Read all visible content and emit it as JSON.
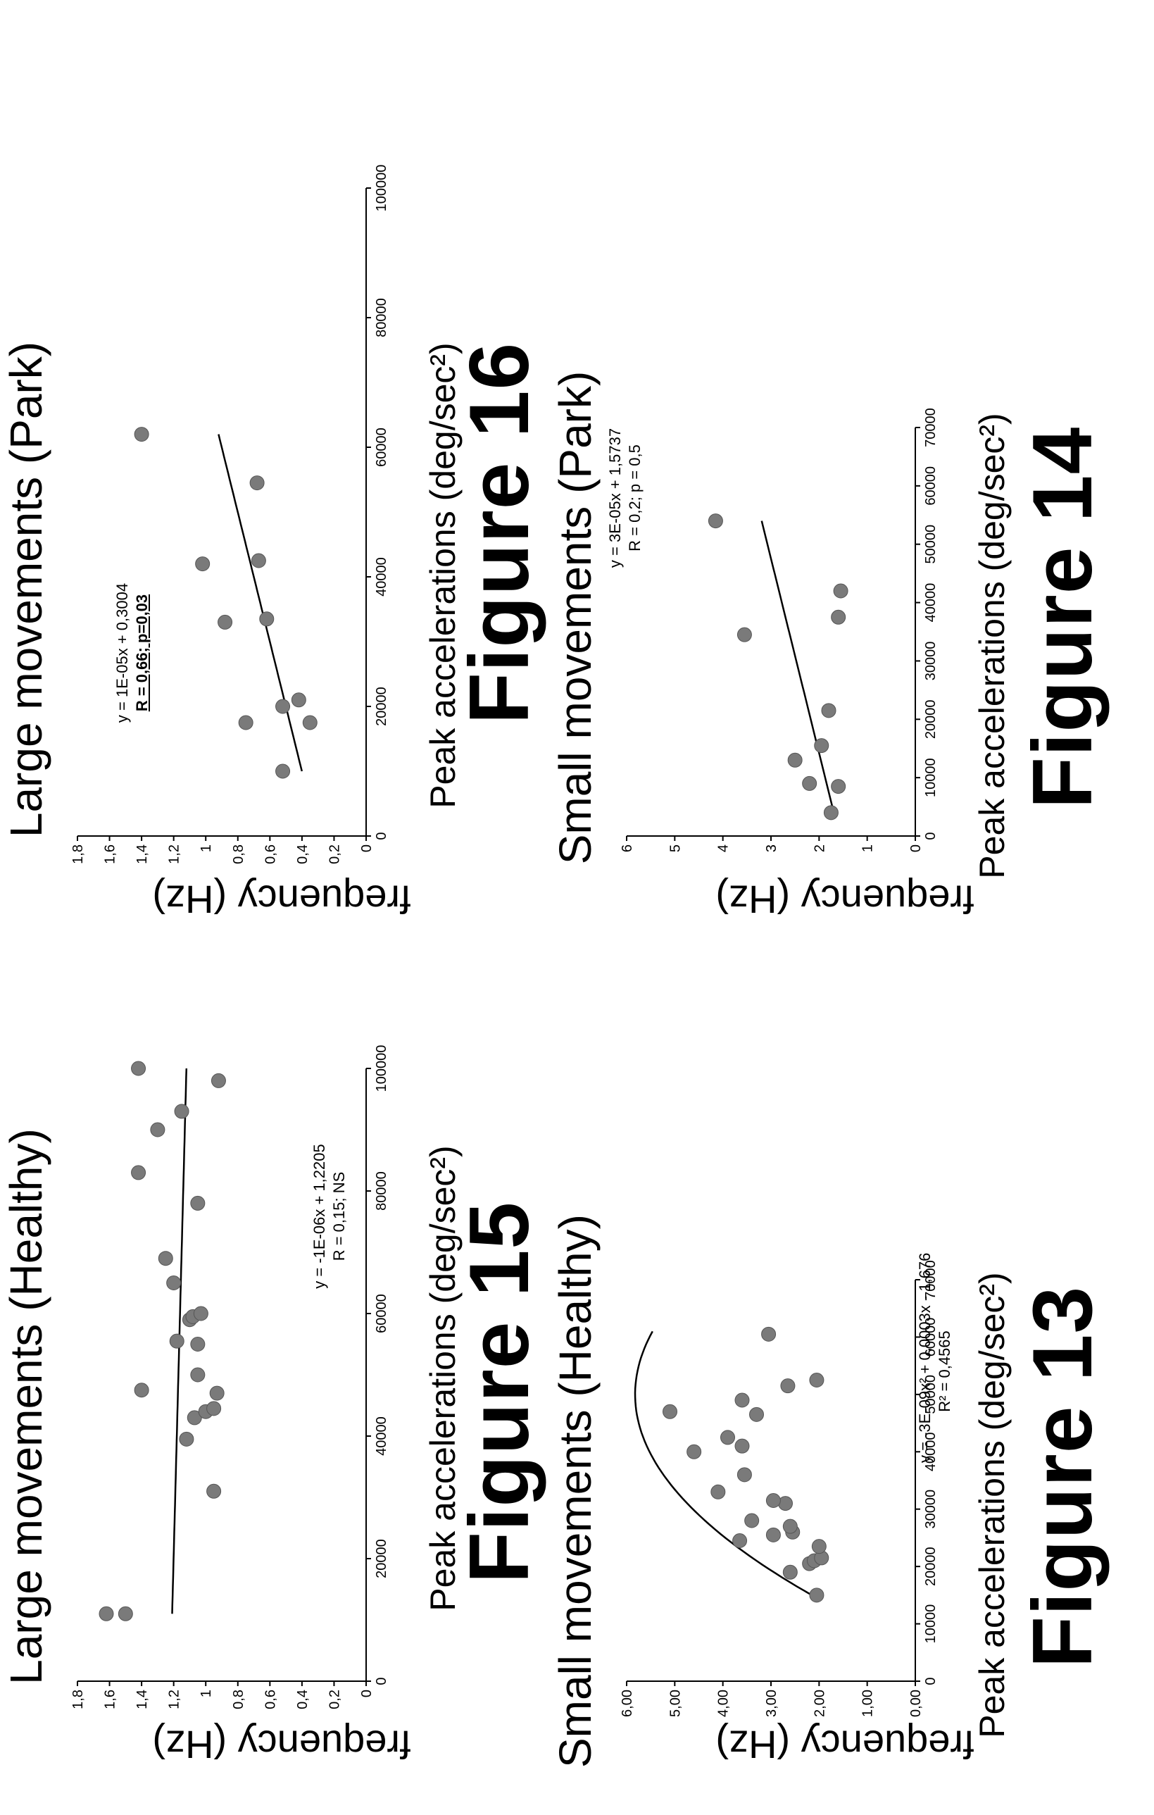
{
  "chart_data": [
    {
      "id": "fig13",
      "type": "scatter",
      "title": "Small movements (Healthy)",
      "xlabel": "Peak accelerations (deg/sec²)",
      "ylabel": "frequency (Hz)",
      "figure_label": "Figure 13",
      "xlim": [
        0,
        70000
      ],
      "ylim": [
        0,
        6
      ],
      "xticks": [
        0,
        10000,
        20000,
        30000,
        40000,
        50000,
        60000,
        70000
      ],
      "xtick_labels": [
        "0",
        "10000",
        "20000",
        "30000",
        "40000",
        "50000",
        "60000",
        "70000"
      ],
      "yticks": [
        0,
        1,
        2,
        3,
        4,
        5,
        6
      ],
      "ytick_labels": [
        "0,00",
        "1,00",
        "2,00",
        "3,00",
        "4,00",
        "5,00",
        "6,00"
      ],
      "equation": "y = -3E-09x² + 0,0003x - 1,676",
      "stat": "R² = 0,4565",
      "stat_emphasis": false,
      "fit": {
        "kind": "poly2",
        "a": -3e-09,
        "b": 0.0003,
        "c": -1.676,
        "x_range": [
          15000,
          61000
        ]
      },
      "points": [
        {
          "x": 15000,
          "y": 2.05
        },
        {
          "x": 19000,
          "y": 2.6
        },
        {
          "x": 20500,
          "y": 2.2
        },
        {
          "x": 21000,
          "y": 2.1
        },
        {
          "x": 21500,
          "y": 1.95
        },
        {
          "x": 23500,
          "y": 2.0
        },
        {
          "x": 24500,
          "y": 3.65
        },
        {
          "x": 25500,
          "y": 2.95
        },
        {
          "x": 26000,
          "y": 2.55
        },
        {
          "x": 27000,
          "y": 2.6
        },
        {
          "x": 28000,
          "y": 3.4
        },
        {
          "x": 31000,
          "y": 2.7
        },
        {
          "x": 31500,
          "y": 2.95
        },
        {
          "x": 33000,
          "y": 4.1
        },
        {
          "x": 36000,
          "y": 3.55
        },
        {
          "x": 40000,
          "y": 4.6
        },
        {
          "x": 41000,
          "y": 3.6
        },
        {
          "x": 42500,
          "y": 3.9
        },
        {
          "x": 46500,
          "y": 3.3
        },
        {
          "x": 47000,
          "y": 5.1
        },
        {
          "x": 49000,
          "y": 3.6
        },
        {
          "x": 51500,
          "y": 2.65
        },
        {
          "x": 52500,
          "y": 2.05
        },
        {
          "x": 60500,
          "y": 3.05
        }
      ]
    },
    {
      "id": "fig14",
      "type": "scatter",
      "title": "Small movements (Park)",
      "xlabel": "Peak accelerations (deg/sec²)",
      "ylabel": "frequency (Hz)",
      "figure_label": "Figure 14",
      "xlim": [
        0,
        70000
      ],
      "ylim": [
        0,
        6
      ],
      "xticks": [
        0,
        10000,
        20000,
        30000,
        40000,
        50000,
        60000,
        70000
      ],
      "xtick_labels": [
        "0",
        "10000",
        "20000",
        "30000",
        "40000",
        "50000",
        "60000",
        "70000"
      ],
      "yticks": [
        0,
        1,
        2,
        3,
        4,
        5,
        6
      ],
      "ytick_labels": [
        "0",
        "1",
        "2",
        "3",
        "4",
        "5",
        "6"
      ],
      "equation": "y = 3E-05x + 1,5737",
      "stat": "R = 0,2; p = 0,5",
      "stat_emphasis": false,
      "fit": {
        "kind": "linear",
        "m": 3e-05,
        "b": 1.5737,
        "x_range": [
          4000,
          54000
        ]
      },
      "points": [
        {
          "x": 4000,
          "y": 1.75
        },
        {
          "x": 8500,
          "y": 1.6
        },
        {
          "x": 9000,
          "y": 2.2
        },
        {
          "x": 13000,
          "y": 2.5
        },
        {
          "x": 15500,
          "y": 1.95
        },
        {
          "x": 21500,
          "y": 1.8
        },
        {
          "x": 34500,
          "y": 3.55
        },
        {
          "x": 37500,
          "y": 1.6
        },
        {
          "x": 42000,
          "y": 1.55
        },
        {
          "x": 54000,
          "y": 4.15
        }
      ]
    },
    {
      "id": "fig15",
      "type": "scatter",
      "title": "Large movements (Healthy)",
      "xlabel": "Peak accelerations (deg/sec²)",
      "ylabel": "frequency (Hz)",
      "figure_label": "Figure 15",
      "xlim": [
        0,
        100000
      ],
      "ylim": [
        0,
        1.8
      ],
      "xticks": [
        0,
        20000,
        40000,
        60000,
        80000,
        100000
      ],
      "xtick_labels": [
        "0",
        "20000",
        "40000",
        "60000",
        "80000",
        "100000"
      ],
      "yticks": [
        0,
        0.2,
        0.4,
        0.6,
        0.8,
        1.0,
        1.2,
        1.4,
        1.6,
        1.8
      ],
      "ytick_labels": [
        "0",
        "0,2",
        "0,4",
        "0,6",
        "0,8",
        "1",
        "1,2",
        "1,4",
        "1,6",
        "1,8"
      ],
      "equation": "y = -1E-06x + 1,2205",
      "stat": "R = 0,15; NS",
      "stat_emphasis": false,
      "fit": {
        "kind": "linear",
        "m": -1e-06,
        "b": 1.2205,
        "x_range": [
          11000,
          100000
        ]
      },
      "points": [
        {
          "x": 11000,
          "y": 1.62
        },
        {
          "x": 11000,
          "y": 1.5
        },
        {
          "x": 31000,
          "y": 0.95
        },
        {
          "x": 39500,
          "y": 1.12
        },
        {
          "x": 43000,
          "y": 1.07
        },
        {
          "x": 44000,
          "y": 1.0
        },
        {
          "x": 44500,
          "y": 0.95
        },
        {
          "x": 47000,
          "y": 0.93
        },
        {
          "x": 47500,
          "y": 1.4
        },
        {
          "x": 50000,
          "y": 1.05
        },
        {
          "x": 55000,
          "y": 1.05
        },
        {
          "x": 55500,
          "y": 1.18
        },
        {
          "x": 59000,
          "y": 1.1
        },
        {
          "x": 59500,
          "y": 1.08
        },
        {
          "x": 60000,
          "y": 1.03
        },
        {
          "x": 65000,
          "y": 1.2
        },
        {
          "x": 69000,
          "y": 1.25
        },
        {
          "x": 78000,
          "y": 1.05
        },
        {
          "x": 83000,
          "y": 1.42
        },
        {
          "x": 90000,
          "y": 1.3
        },
        {
          "x": 93000,
          "y": 1.15
        },
        {
          "x": 98000,
          "y": 0.92
        },
        {
          "x": 100000,
          "y": 1.42
        }
      ]
    },
    {
      "id": "fig16",
      "type": "scatter",
      "title": "Large movements (Park)",
      "xlabel": "Peak accelerations (deg/sec²)",
      "ylabel": "frequency (Hz)",
      "figure_label": "Figure 16",
      "xlim": [
        0,
        100000
      ],
      "ylim": [
        0,
        1.8
      ],
      "xticks": [
        0,
        20000,
        40000,
        60000,
        80000,
        100000
      ],
      "xtick_labels": [
        "0",
        "20000",
        "40000",
        "60000",
        "80000",
        "100000"
      ],
      "yticks": [
        0,
        0.2,
        0.4,
        0.6,
        0.8,
        1.0,
        1.2,
        1.4,
        1.6,
        1.8
      ],
      "ytick_labels": [
        "0",
        "0,2",
        "0,4",
        "0,6",
        "0,8",
        "1",
        "1,2",
        "1,4",
        "1,6",
        "1,8"
      ],
      "equation": "y = 1E-05x + 0,3004",
      "stat": "R = 0,66; p=0,03",
      "stat_emphasis": true,
      "fit": {
        "kind": "linear",
        "m": 1e-05,
        "b": 0.3004,
        "x_range": [
          10000,
          62000
        ]
      },
      "points": [
        {
          "x": 10000,
          "y": 0.52
        },
        {
          "x": 17500,
          "y": 0.35
        },
        {
          "x": 17500,
          "y": 0.75
        },
        {
          "x": 20000,
          "y": 0.52
        },
        {
          "x": 21000,
          "y": 0.42
        },
        {
          "x": 33000,
          "y": 0.88
        },
        {
          "x": 33500,
          "y": 0.62
        },
        {
          "x": 42000,
          "y": 1.02
        },
        {
          "x": 42500,
          "y": 0.67
        },
        {
          "x": 54500,
          "y": 0.68
        },
        {
          "x": 62000,
          "y": 1.4
        }
      ]
    }
  ]
}
